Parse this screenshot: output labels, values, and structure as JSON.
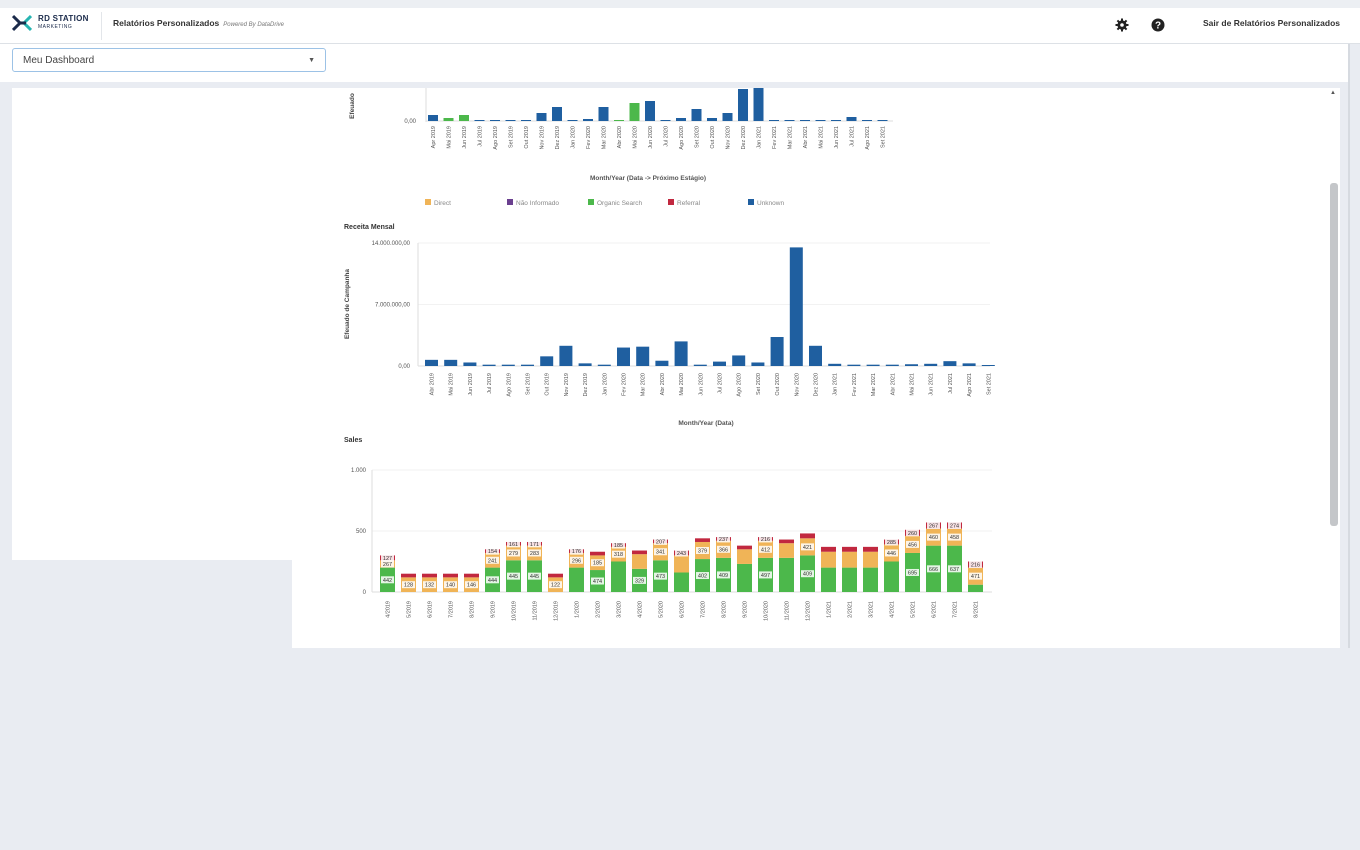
{
  "header": {
    "logo_line1": "RD STATION",
    "logo_line2": "MARKETING",
    "title": "Relatórios Personalizados",
    "powered": "Powered By DataDrive",
    "exit_label": "Sair de Relatórios Personalizados"
  },
  "dashboard_select": {
    "selected": "Meu Dashboard"
  },
  "colors": {
    "blue": "#1f5fa0",
    "green": "#4cb84b",
    "orange": "#f0b457",
    "red": "#c1283f",
    "purple": "#6a3f8f"
  },
  "charts": {
    "chart1": {
      "ylabel": "Efeuado",
      "ytick": "0,00",
      "xlabel": "Month/Year (Data -> Próximo Estágio)",
      "categories": [
        "Apr 2019",
        "Mai 2019",
        "Jun 2019",
        "Jul 2019",
        "Ago 2019",
        "Set 2019",
        "Out 2019",
        "Nov 2019",
        "Dez 2019",
        "Jan 2020",
        "Fev 2020",
        "Mar 2020",
        "Abr 2020",
        "Mai 2020",
        "Jun 2020",
        "Jul 2020",
        "Ago 2020",
        "Set 2020",
        "Out 2020",
        "Nov 2020",
        "Dez 2020",
        "Jan 2021",
        "Fev 2021",
        "Mar 2021",
        "Abr 2021",
        "Mai 2021",
        "Jun 2021",
        "Jul 2021",
        "Ago 2021",
        "Set 2021"
      ],
      "values": [
        3,
        1.5,
        3,
        0.5,
        0.5,
        0.5,
        0.5,
        4,
        7,
        0.5,
        1,
        7,
        0.5,
        9,
        10,
        0.5,
        1.5,
        6,
        1.5,
        4,
        16,
        17,
        0.5,
        0.5,
        0.5,
        0.5,
        0.5,
        2,
        0.5,
        0
      ],
      "colors": [
        "blue",
        "green",
        "green",
        "blue",
        "blue",
        "blue",
        "blue",
        "blue",
        "blue",
        "blue",
        "blue",
        "blue",
        "green",
        "green",
        "blue",
        "blue",
        "blue",
        "blue",
        "blue",
        "blue",
        "blue",
        "blue",
        "blue",
        "blue",
        "blue",
        "blue",
        "blue",
        "blue",
        "blue",
        "blue"
      ]
    },
    "legend": [
      {
        "label": "Direct",
        "color": "orange"
      },
      {
        "label": "Não Informado",
        "color": "purple"
      },
      {
        "label": "Organic Search",
        "color": "green"
      },
      {
        "label": "Referral",
        "color": "red"
      },
      {
        "label": "Unknown",
        "color": "blue"
      }
    ],
    "chart2": {
      "title": "Receita Mensal",
      "ylabel": "Efeuado de Campanha",
      "yticks": [
        "14.000.000,00",
        "7.000.000,00",
        "0,00"
      ],
      "ymax": 14000000,
      "xlabel": "Month/Year (Data)",
      "categories": [
        "Abr 2019",
        "Mai 2019",
        "Jun 2019",
        "Jul 2019",
        "Ago 2019",
        "Set 2019",
        "Out 2019",
        "Nov 2019",
        "Dez 2019",
        "Jan 2020",
        "Fev 2020",
        "Mar 2020",
        "Abr 2020",
        "Mai 2020",
        "Jun 2020",
        "Jul 2020",
        "Ago 2020",
        "Set 2020",
        "Out 2020",
        "Nov 2020",
        "Dez 2020",
        "Jan 2021",
        "Fev 2021",
        "Mar 2021",
        "Abr 2021",
        "Mai 2021",
        "Jun 2021",
        "Jul 2021",
        "Ago 2021",
        "Set 2021"
      ],
      "values": [
        700000,
        700000,
        400000,
        150000,
        150000,
        150000,
        1100000,
        2300000,
        300000,
        150000,
        2100000,
        2200000,
        600000,
        2800000,
        150000,
        500000,
        1200000,
        400000,
        3300000,
        13500000,
        2300000,
        250000,
        150000,
        150000,
        150000,
        200000,
        250000,
        550000,
        300000,
        0
      ]
    },
    "chart3": {
      "title": "Sales",
      "yticks": [
        "1.000",
        "500",
        "0"
      ],
      "ymax": 1000,
      "categories": [
        "4/2019",
        "5/2019",
        "6/2019",
        "7/2019",
        "8/2019",
        "9/2019",
        "10/2019",
        "11/2019",
        "12/2019",
        "1/2020",
        "2/2020",
        "3/2020",
        "4/2020",
        "5/2020",
        "6/2020",
        "7/2020",
        "8/2020",
        "9/2020",
        "10/2020",
        "11/2020",
        "12/2020",
        "1/2021",
        "2/2021",
        "3/2021",
        "4/2021",
        "5/2021",
        "6/2021",
        "7/2021",
        "8/2021"
      ],
      "series": [
        {
          "name": "Organic Search",
          "color": "green",
          "values": [
            200,
            0,
            0,
            0,
            0,
            200,
            260,
            260,
            0,
            200,
            180,
            250,
            190,
            260,
            160,
            270,
            280,
            230,
            280,
            280,
            300,
            200,
            200,
            200,
            250,
            320,
            380,
            380,
            60
          ]
        },
        {
          "name": "Direct",
          "color": "orange",
          "values": [
            60,
            120,
            120,
            120,
            120,
            120,
            120,
            120,
            120,
            120,
            120,
            120,
            120,
            140,
            140,
            140,
            140,
            120,
            140,
            120,
            140,
            130,
            130,
            130,
            140,
            140,
            140,
            140,
            140
          ]
        },
        {
          "name": "Unknown",
          "color": "blue",
          "values": [
            0,
            0,
            0,
            0,
            0,
            0,
            0,
            0,
            0,
            0,
            0,
            0,
            0,
            0,
            0,
            0,
            0,
            0,
            0,
            0,
            0,
            0,
            0,
            0,
            0,
            0,
            0,
            0,
            0
          ]
        },
        {
          "name": "Referral",
          "color": "red",
          "values": [
            40,
            30,
            30,
            30,
            30,
            30,
            30,
            30,
            30,
            30,
            30,
            30,
            30,
            30,
            40,
            30,
            30,
            30,
            30,
            30,
            40,
            40,
            40,
            40,
            40,
            50,
            50,
            50,
            50
          ]
        }
      ],
      "labels_green": [
        "442",
        "",
        "",
        "",
        "",
        "444",
        "445",
        "445",
        "",
        "",
        "474",
        "",
        "329",
        "473",
        "",
        "402",
        "409",
        "",
        "497",
        "",
        "409",
        "",
        "",
        "",
        "",
        "695",
        "666",
        "637",
        ""
      ],
      "labels_orange": [
        "267",
        "128",
        "132",
        "140",
        "146",
        "241",
        "279",
        "283",
        "122",
        "296",
        "185",
        "318",
        "",
        "341",
        "",
        "379",
        "366",
        "",
        "412",
        "",
        "421",
        "",
        "",
        "",
        "446",
        "456",
        "460",
        "458",
        "471"
      ],
      "labels_red": [
        "127",
        "",
        "",
        "",
        "",
        "154",
        "161",
        "171",
        "",
        "176",
        "",
        "185",
        "",
        "207",
        "243",
        "",
        "237",
        "",
        "216",
        "",
        "",
        "",
        "",
        "",
        "285",
        "260",
        "267",
        "274",
        "216"
      ]
    }
  }
}
